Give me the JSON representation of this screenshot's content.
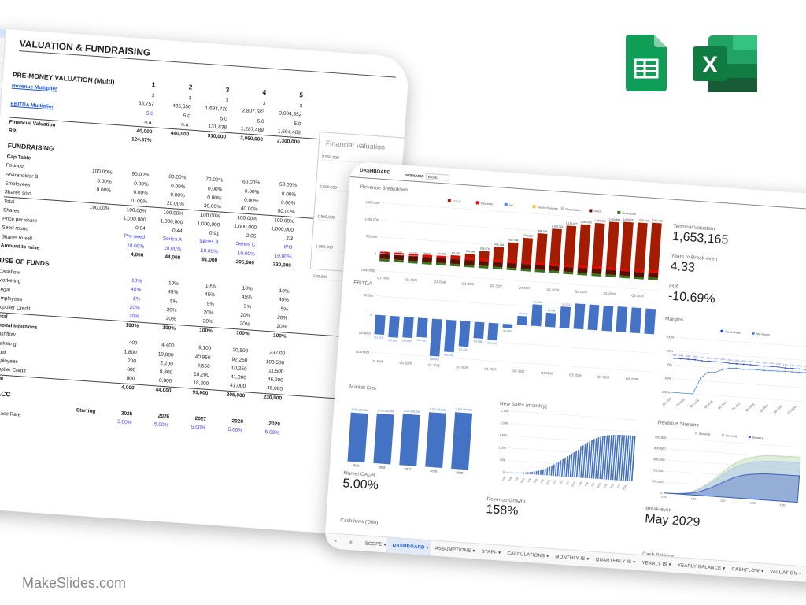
{
  "valuation_sheet": {
    "title": "VALUATION & FUNDRAISING",
    "rows": [
      {
        "type": "sec",
        "label": "PRE-MONEY VALUATION (Multi)",
        "vals": [
          "",
          "1",
          "2",
          "3",
          "4",
          "5"
        ]
      },
      {
        "type": "link",
        "label": "Revenue Multiplier",
        "vals": [
          "",
          "3",
          "3",
          "3",
          "3",
          "3"
        ],
        "blue_first": true
      },
      {
        "label": "",
        "vals": [
          "",
          "35,757",
          "435,650",
          "1,694,778",
          "2,807,583",
          "3,004,552"
        ]
      },
      {
        "type": "link",
        "label": "EBITDA Multiplier",
        "vals": [
          "",
          "5.0",
          "5.0",
          "5.0",
          "5.0",
          "5.0"
        ],
        "blue_first": true
      },
      {
        "label": "",
        "vals": [
          "",
          "n.a.",
          "n.a.",
          "131,838",
          "1,287,489",
          "1,604,488"
        ]
      },
      {
        "type": "bline",
        "label": "Financial Valuation",
        "vals": [
          "",
          "40,000",
          "440,000",
          "910,000",
          "2,050,000",
          "2,300,000"
        ]
      },
      {
        "type": "b",
        "label": "RRI",
        "vals": [
          "",
          "124.87%"
        ]
      },
      {
        "type": "sec",
        "label": "FUNDRAISING",
        "vals": []
      },
      {
        "type": "b",
        "label": "Cap Table",
        "vals": []
      },
      {
        "label": "Founder",
        "vals": [
          "100.00%",
          "90.00%",
          "80.00%",
          "70.00%",
          "60.00%",
          "50.00%"
        ]
      },
      {
        "label": "Shareholder B",
        "vals": [
          "0.00%",
          "0.00%",
          "0.00%",
          "0.00%",
          "0.00%",
          "0.00%"
        ]
      },
      {
        "label": "Employees",
        "vals": [
          "0.00%",
          "0.00%",
          "0.00%",
          "0.00%",
          "0.00%",
          "0.00%"
        ]
      },
      {
        "label": "Shares sold",
        "vals": [
          "",
          "10.00%",
          "20.00%",
          "30.00%",
          "40.00%",
          "50.00%"
        ]
      },
      {
        "type": "line",
        "label": "Total",
        "vals": [
          "100.00%",
          "100.00%",
          "100.00%",
          "100.00%",
          "100.00%",
          "100.00%"
        ]
      },
      {
        "label": "Shares",
        "vals": [
          "",
          "1,000,000",
          "1,000,000",
          "1,000,000",
          "1,000,000",
          "1,000,000"
        ]
      },
      {
        "label": "Price per share",
        "vals": [
          "",
          "0.04",
          "0.44",
          "0.91",
          "2.05",
          "2.3"
        ]
      },
      {
        "type": "blue",
        "label": "Seed round",
        "vals": [
          "",
          "Pre-seed",
          "Series A",
          "Series B",
          "Series C",
          "IPO"
        ]
      },
      {
        "type": "blue",
        "label": "Shares to sell",
        "vals": [
          "",
          "10.00%",
          "10.00%",
          "10.00%",
          "10.00%",
          "10.00%"
        ]
      },
      {
        "type": "b",
        "label": "Amount to raise",
        "vals": [
          "",
          "4,000",
          "44,000",
          "91,000",
          "205,000",
          "230,000"
        ]
      },
      {
        "type": "sec",
        "label": "USE OF FUNDS",
        "vals": []
      },
      {
        "label": "Cashflow",
        "vals": [
          "",
          "10%",
          "10%",
          "10%",
          "10%",
          "10%"
        ],
        "blue_first": true
      },
      {
        "label": "Marketing",
        "vals": [
          "",
          "45%",
          "45%",
          "45%",
          "45%",
          "45%"
        ],
        "blue_first": true
      },
      {
        "label": "Legal",
        "vals": [
          "",
          "5%",
          "5%",
          "5%",
          "5%",
          "5%"
        ],
        "blue_first": true
      },
      {
        "label": "Employees",
        "vals": [
          "",
          "20%",
          "20%",
          "20%",
          "20%",
          "20%"
        ],
        "blue_first": true
      },
      {
        "label": "Supplier Credit",
        "vals": [
          "",
          "20%",
          "20%",
          "20%",
          "20%",
          "20%"
        ],
        "blue_first": true
      },
      {
        "type": "bline",
        "label": "Total",
        "vals": [
          "",
          "100%",
          "100%",
          "100%",
          "100%",
          "100%"
        ]
      },
      {
        "type": "b",
        "label": "Capital Injections",
        "vals": []
      },
      {
        "label": "Cashflow",
        "vals": [
          "",
          "400",
          "4,400",
          "9,100",
          "20,500",
          "23,000"
        ]
      },
      {
        "label": "Marketing",
        "vals": [
          "",
          "1,800",
          "19,800",
          "40,950",
          "92,250",
          "103,500"
        ]
      },
      {
        "label": "Legal",
        "vals": [
          "",
          "200",
          "2,200",
          "4,550",
          "10,250",
          "11,500"
        ]
      },
      {
        "label": "Employees",
        "vals": [
          "",
          "800",
          "8,800",
          "18,200",
          "41,000",
          "46,000"
        ]
      },
      {
        "label": "Supplier Credit",
        "vals": [
          "",
          "800",
          "8,800",
          "18,200",
          "41,000",
          "46,000"
        ]
      },
      {
        "type": "bline",
        "label": "Total",
        "vals": [
          "",
          "4,000",
          "44,000",
          "91,000",
          "205,000",
          "230,000"
        ]
      },
      {
        "type": "sec",
        "label": "WACC",
        "vals": []
      },
      {
        "type": "b",
        "label": "",
        "vals": [
          "Starting",
          "2025",
          "2026",
          "2027",
          "2028",
          "2029"
        ]
      },
      {
        "label": "Increase Rate",
        "vals": [
          "",
          "5.00%",
          "5.00%",
          "5.00%",
          "5.00%",
          "5.00%"
        ],
        "blue_all": true
      }
    ],
    "financial_valuation": {
      "title": "Financial Valuation",
      "yticks": [
        "2,500,000",
        "2,000,000",
        "1,500,000",
        "1,000,000",
        "500,000"
      ]
    }
  },
  "dashboard": {
    "title": "DASHBOARD",
    "scenario_label": "SCENARIO",
    "scenario_value": "BASE",
    "kpis": [
      {
        "label": "Terminal Valuation",
        "value": "1,653,165"
      },
      {
        "label": "Years to Break-even",
        "value": "4.33"
      },
      {
        "label": "IRR",
        "value": "-10.69%"
      }
    ],
    "market_cagr": {
      "label": "Market CAGR",
      "value": "5.00%"
    },
    "revenue_growth": {
      "label": "Revenue Growth",
      "value": "158%"
    },
    "break_even": {
      "label": "Break-even",
      "value": "May 2029"
    },
    "cashflows_label": "Cashflows ('000)",
    "cash_balance_label": "Cash Balance",
    "tabs": [
      "SCOPE",
      "DASHBOARD",
      "ASSUMPTIONS",
      "STAFF",
      "CALCULATIONS",
      "MONTHLY IS",
      "QUARTERLY IS",
      "YEARLY IS",
      "YEARLY BALANCE",
      "CASHFLOW",
      "VALUATION"
    ],
    "active_tab": "DASHBOARD"
  },
  "chart_data": [
    {
      "type": "bar",
      "title": "Revenue Breakdown",
      "stacked": true,
      "legend": [
        "COGS",
        "Discounts",
        "Tax",
        "Interest Expense",
        "Depreciation",
        "OPEX",
        "Net Income"
      ],
      "colors": [
        "#a61c00",
        "#ff0000",
        "#4a86e8",
        "#f1c232",
        "#cccccc",
        "#5b0f00",
        "#38761d"
      ],
      "categories": [
        "Q1 2025",
        "Q2 2025",
        "Q3 2025",
        "Q4 2025",
        "Q1 2026",
        "Q2 2026",
        "Q3 2026",
        "Q4 2026",
        "Q1 2027",
        "Q2 2027",
        "Q3 2027",
        "Q4 2027",
        "Q1 2028",
        "Q2 2028",
        "Q3 2028",
        "Q4 2028",
        "Q1 2029",
        "Q2 2029",
        "Q3 2029",
        "Q4 2029"
      ],
      "totals": [
        1569,
        5560,
        13525,
        29636,
        60661,
        111583,
        189894,
        298670,
        445728,
        607356,
        770029,
        936246,
        1100752,
        1218077,
        1290373,
        1357630,
        1423968,
        1450013,
        1459102,
        1482742
      ],
      "total_labels": [
        "1,569",
        "5,560",
        "13,525",
        "29,636",
        "60,661",
        "111,583",
        "189,894",
        "298,670",
        "445,728",
        "607,356",
        "770,029",
        "936,246",
        "1,100,752",
        "1,218,077",
        "1,290,373",
        "1,357,630",
        "1,423,968",
        "1,450,013",
        "1,459,102",
        "1,482,742"
      ],
      "yticks": [
        "1,500,000",
        "1,000,000",
        "500,000",
        "0",
        "(500,000)"
      ],
      "ylim": [
        -500000,
        1500000
      ]
    },
    {
      "type": "bar",
      "title": "EBITDA",
      "categories": [
        "Q1 2025",
        "Q2 2025",
        "Q3 2025",
        "Q4 2025",
        "Q1 2026",
        "Q2 2026",
        "Q3 2026",
        "Q4 2026",
        "Q1 2027",
        "Q2 2027",
        "Q3 2027",
        "Q4 2027",
        "Q1 2028",
        "Q2 2028",
        "Q3 2028",
        "Q4 2028",
        "Q1 2029",
        "Q2 2029",
        "Q3 2029",
        "Q4 2029"
      ],
      "values": [
        -51147,
        -56255,
        -54486,
        -50750,
        -98000,
        -84575,
        -67221,
        -43095,
        -45447,
        -10042,
        23844,
        56853,
        37344,
        56133,
        74920,
        85892,
        74697,
        76742,
        82270,
        80767
      ],
      "value_labels": [
        "(51,147)",
        "(56,255)",
        "(54,486)",
        "(50,750)",
        "(98,000)",
        "(84,575)",
        "(67,221)",
        "(43,095)",
        "(45,447)",
        "(10,042)",
        "23,844",
        "56,853",
        "37,344",
        "56,133",
        "74,920",
        "85,892",
        "74,697",
        "76,742",
        "82,270",
        "80,767"
      ],
      "yticks": [
        "50,000",
        "0",
        "(50,000)",
        "(100,000)"
      ],
      "ylim": [
        -100000,
        50000
      ],
      "color": "#4472c4"
    },
    {
      "type": "line",
      "title": "Margins",
      "legend": [
        "Gross Margin",
        "Net Margin"
      ],
      "colors": [
        "#1a3ee8",
        "#4a86e8"
      ],
      "gross": [
        24,
        24,
        24,
        24,
        22,
        22,
        22,
        22,
        20,
        20,
        20,
        20,
        19,
        19,
        19,
        19,
        17,
        17,
        17,
        17
      ],
      "gross_labels": [
        "24%",
        "24%",
        "24%",
        "24%",
        "22%",
        "22%",
        "22%",
        "22%",
        "20%",
        "20%",
        "20%",
        "20%",
        "19%",
        "19%",
        "19%",
        "19%",
        "17%",
        "17%",
        "17%",
        "17%"
      ],
      "net": [
        -300,
        -250,
        -180,
        -100,
        -40,
        -17,
        -17,
        -5,
        2,
        4,
        2,
        4,
        4,
        3,
        4,
        4,
        5,
        5,
        5,
        5
      ],
      "yticks": [
        "100%",
        "50%",
        "0%",
        "-50%",
        "-100%"
      ],
      "ylim": [
        -100,
        100
      ],
      "xticks": [
        "Q1 2025",
        "Q3 2025",
        "Q1 2026",
        "Q3 2026",
        "Q1 2027",
        "Q3 2027",
        "Q1 2028",
        "Q3 2028",
        "Q1 2029",
        "Q3 2029"
      ]
    },
    {
      "type": "bar",
      "title": "Market Size",
      "categories": [
        "2025",
        "2026",
        "2027",
        "2028",
        "2029"
      ],
      "values": [
        1091200000,
        1109000000,
        1141200000,
        1220000000,
        1260400000
      ],
      "value_labels": [
        "1,091,200,000",
        "1,109,000,000",
        "1,141,200,000",
        "1,220,000,000",
        "1,260,400,000"
      ],
      "color": "#4472c4"
    },
    {
      "type": "bar",
      "title": "New Sales (monthly)",
      "yticks": [
        "2,500",
        "2,000",
        "1,500",
        "1,000",
        "500",
        "0"
      ],
      "ylim": [
        0,
        2500
      ],
      "color": "#4472c4",
      "values": [
        10,
        12,
        15,
        18,
        22,
        27,
        33,
        40,
        48,
        58,
        70,
        84,
        100,
        120,
        142,
        168,
        198,
        232,
        270,
        312,
        358,
        408,
        462,
        520,
        580,
        642,
        706,
        770,
        834,
        896,
        958,
        1016,
        1072,
        1124,
        1272,
        1316,
        1390,
        1450,
        1510,
        1560,
        1610,
        1650,
        1690,
        1720,
        1750,
        1775,
        1795,
        1810,
        1822,
        1832,
        1840,
        1845,
        1848,
        1850,
        1851,
        1852,
        1853,
        1853,
        1854,
        1854
      ]
    },
    {
      "type": "area",
      "title": "Revenue Streams",
      "legend": [
        "[Stream3]",
        "[Stream2]",
        "[Stream1]"
      ],
      "colors": [
        "#b6d7a8",
        "#a4c2f4",
        "#3c5fc4"
      ],
      "xticks": [
        "1/25",
        "1/26",
        "1/27",
        "1/28",
        "1/29"
      ],
      "yticks": [
        "500,000",
        "400,000",
        "300,000",
        "200,000",
        "100,000",
        "0"
      ],
      "ylim": [
        0,
        500000
      ],
      "stream1": [
        0,
        1000,
        3000,
        8000,
        18000,
        35000,
        60000,
        90000,
        125000,
        160000,
        190000,
        210000,
        222000,
        230000,
        236000,
        238000,
        239000,
        240000,
        240000,
        240000
      ],
      "stream2": [
        0,
        500,
        2000,
        5000,
        10000,
        20000,
        35000,
        52000,
        70000,
        85000,
        95000,
        102000,
        108000,
        112000,
        115000,
        117000,
        118000,
        119000,
        120000,
        120000
      ],
      "stream3": [
        0,
        200,
        800,
        2000,
        4000,
        8000,
        14000,
        20000,
        27000,
        34000,
        40000,
        44000,
        47000,
        49000,
        50000,
        50000,
        50000,
        50000,
        50000,
        50000
      ]
    }
  ],
  "logos": {
    "sheets": "Google Sheets",
    "excel": "X"
  },
  "footer": "MakeSlides.com"
}
